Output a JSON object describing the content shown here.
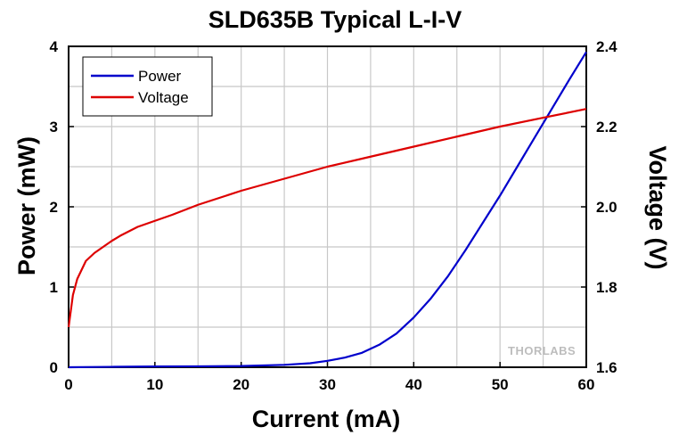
{
  "chart_data": {
    "type": "line",
    "title": "SLD635B Typical L-I-V",
    "xlabel": "Current (mA)",
    "ylabel": "Power (mW)",
    "y2label": "Voltage (V)",
    "xlim": [
      0,
      60
    ],
    "ylim": [
      0,
      4
    ],
    "y2lim": [
      1.6,
      2.4
    ],
    "x_ticks": [
      0,
      10,
      20,
      30,
      40,
      50,
      60
    ],
    "y_ticks": [
      0,
      1,
      2,
      3,
      4
    ],
    "y2_ticks": [
      "1.6",
      "1.8",
      "2.0",
      "2.2",
      "2.4"
    ],
    "grid": true,
    "legend_position": "top-left",
    "series": [
      {
        "name": "Power",
        "axis": "left",
        "color": "#0000cc",
        "points": [
          [
            0,
            0.0
          ],
          [
            5,
            0.005
          ],
          [
            10,
            0.01
          ],
          [
            15,
            0.012
          ],
          [
            20,
            0.015
          ],
          [
            25,
            0.03
          ],
          [
            28,
            0.05
          ],
          [
            30,
            0.08
          ],
          [
            32,
            0.12
          ],
          [
            34,
            0.18
          ],
          [
            36,
            0.28
          ],
          [
            38,
            0.42
          ],
          [
            40,
            0.62
          ],
          [
            42,
            0.86
          ],
          [
            44,
            1.14
          ],
          [
            46,
            1.46
          ],
          [
            48,
            1.8
          ],
          [
            50,
            2.14
          ],
          [
            52,
            2.5
          ],
          [
            54,
            2.86
          ],
          [
            56,
            3.22
          ],
          [
            58,
            3.58
          ],
          [
            60,
            3.93
          ]
        ]
      },
      {
        "name": "Voltage",
        "axis": "right",
        "color": "#dd0000",
        "points": [
          [
            0,
            1.7
          ],
          [
            0.5,
            1.78
          ],
          [
            1,
            1.82
          ],
          [
            2,
            1.865
          ],
          [
            3,
            1.885
          ],
          [
            4,
            1.9
          ],
          [
            5,
            1.915
          ],
          [
            6,
            1.928
          ],
          [
            8,
            1.95
          ],
          [
            10,
            1.965
          ],
          [
            12,
            1.98
          ],
          [
            15,
            2.005
          ],
          [
            20,
            2.04
          ],
          [
            25,
            2.07
          ],
          [
            30,
            2.1
          ],
          [
            35,
            2.125
          ],
          [
            40,
            2.15
          ],
          [
            45,
            2.175
          ],
          [
            50,
            2.2
          ],
          [
            55,
            2.222
          ],
          [
            60,
            2.244
          ]
        ]
      }
    ],
    "watermark": "THORLABS"
  }
}
